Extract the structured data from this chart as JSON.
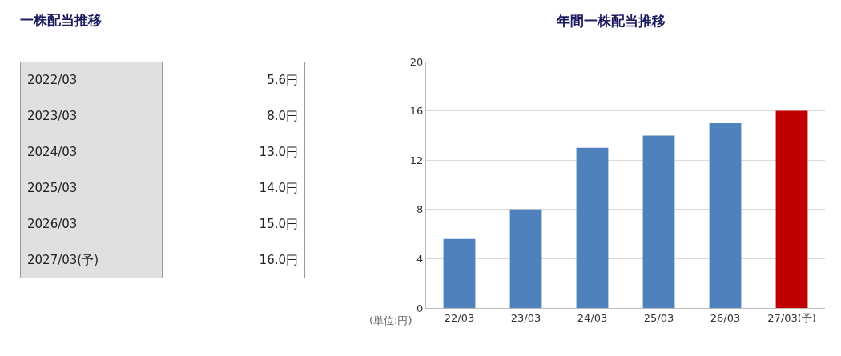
{
  "chart_data": [
    {
      "type": "other",
      "title": "一株配当推移",
      "categories": [
        "2022/03",
        "2023/03",
        "2024/03",
        "2025/03",
        "2026/03",
        "2027/03(予)"
      ],
      "values": [
        5.6,
        8.0,
        13.0,
        14.0,
        15.0,
        16.0
      ],
      "value_labels": [
        "5.6円",
        "8.0円",
        "13.0円",
        "14.0円",
        "15.0円",
        "16.0円"
      ]
    },
    {
      "type": "bar",
      "title": "年間一株配当推移",
      "categories": [
        "22/03",
        "23/03",
        "24/03",
        "25/03",
        "26/03",
        "27/03(予)"
      ],
      "values": [
        5.6,
        8,
        13,
        14,
        15,
        16
      ],
      "colors": [
        "#4f81bd",
        "#4f81bd",
        "#4f81bd",
        "#4f81bd",
        "#4f81bd",
        "#c00000"
      ],
      "ylim": [
        0,
        20
      ],
      "yticks": [
        0,
        4,
        8,
        12,
        16,
        20
      ],
      "grid": "y",
      "annotations": [
        "(単位:円)"
      ]
    }
  ]
}
